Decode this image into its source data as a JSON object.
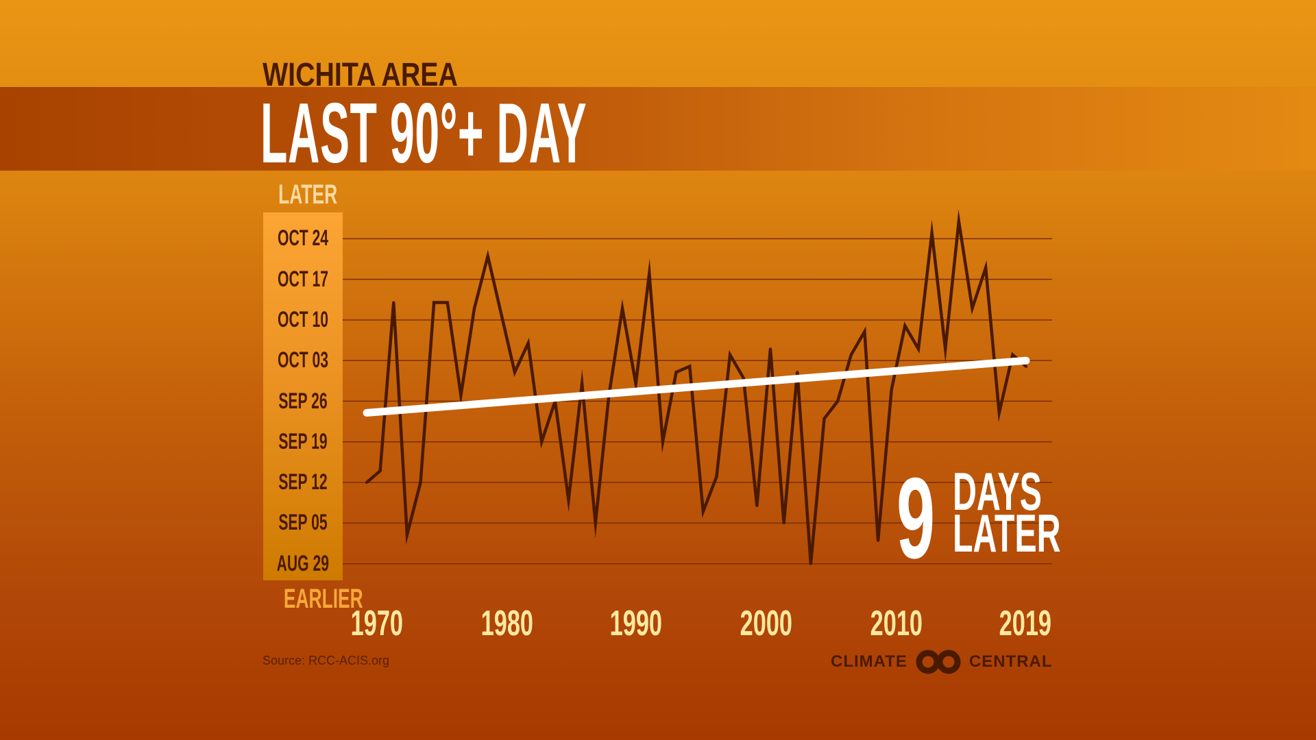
{
  "header": {
    "subtitle": "WICHITA AREA",
    "title": "LAST 90°+ DAY"
  },
  "y_axis": {
    "top_label": "LATER",
    "bottom_label": "EARLIER"
  },
  "callout": {
    "number": "9",
    "line1": "DAYS",
    "line2": "LATER"
  },
  "footer": {
    "source": "Source: RCC-ACIS.org",
    "logo_left": "CLIMATE",
    "logo_right": "CENTRAL"
  },
  "colors": {
    "line": "#4A1A00",
    "trend": "#FFFFFF",
    "grid": "#7A2E00",
    "axis_box_top": "#FCA534",
    "axis_box_bottom": "#CE7A00"
  },
  "chart_data": {
    "type": "line",
    "title": "LAST 90°+ DAY",
    "xlabel": "",
    "ylabel": "",
    "x_ticks": [
      "1970",
      "1980",
      "1990",
      "2000",
      "2010",
      "2019"
    ],
    "y_ticks": [
      "AUG 29",
      "SEP 05",
      "SEP 12",
      "SEP 19",
      "SEP 26",
      "OCT 03",
      "OCT 10",
      "OCT 17",
      "OCT 24"
    ],
    "ylim": [
      "Aug 29",
      "Oct 24"
    ],
    "grid": "horizontal",
    "x": [
      1970,
      1971,
      1972,
      1973,
      1974,
      1975,
      1976,
      1977,
      1978,
      1979,
      1980,
      1981,
      1982,
      1983,
      1984,
      1985,
      1986,
      1987,
      1988,
      1989,
      1990,
      1991,
      1992,
      1993,
      1994,
      1995,
      1996,
      1997,
      1998,
      1999,
      2000,
      2001,
      2002,
      2003,
      2004,
      2005,
      2006,
      2007,
      2008,
      2009,
      2010,
      2011,
      2012,
      2013,
      2014,
      2015,
      2016,
      2017,
      2018,
      2019
    ],
    "series": [
      {
        "values": [
          "Sep 12",
          "Sep 14",
          "Oct 13",
          "Sep 3",
          "Sep 12",
          "Oct 13",
          "Oct 13",
          "Sep 27",
          "Oct 12",
          "Oct 21",
          "Oct 11",
          "Oct 1",
          "Oct 6",
          "Sep 19",
          "Sep 26",
          "Sep 9",
          "Sep 29",
          "Sep 5",
          "Sep 27",
          "Oct 12",
          "Sep 29",
          "Oct 18",
          "Sep 19",
          "Oct 1",
          "Oct 2",
          "Sep 7",
          "Sep 13",
          "Oct 4",
          "Sep 30",
          "Sep 8",
          "Oct 5",
          "Sep 5",
          "Oct 1",
          "Aug 29",
          "Sep 23",
          "Sep 26",
          "Oct 4",
          "Oct 8",
          "Sep 2",
          "Sep 28",
          "Oct 9",
          "Oct 5",
          "Oct 25",
          "Oct 5",
          "Oct 27",
          "Oct 12",
          "Oct 19",
          "Sep 24",
          "Oct 4",
          "Oct 2"
        ]
      }
    ],
    "trend": {
      "x": [
        1970,
        2019
      ],
      "values": [
        "Sep 24",
        "Oct 3"
      ]
    }
  }
}
